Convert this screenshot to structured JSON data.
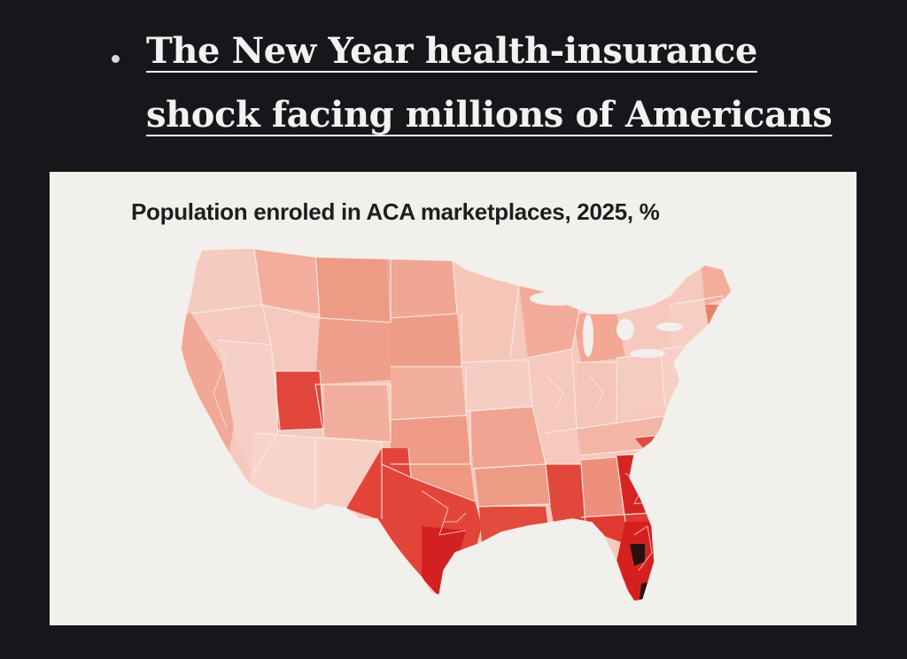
{
  "headline": {
    "line1": "The New Year health-insurance",
    "line2": "shock facing millions of Americans"
  },
  "map": {
    "title": "Population enroled in ACA marketplaces, 2025, %",
    "region": "contiguous-united-states",
    "unit": "congressional-district",
    "colors": {
      "lowest": "#f5c9bd",
      "low": "#f2ad9c",
      "mid": "#ec8b76",
      "high": "#e0463a",
      "very_high": "#cc1e1e",
      "highest": "#2a1010",
      "border": "#f6ece8",
      "background": "#f1f0ec"
    },
    "highlights": [
      {
        "area": "Florida",
        "level": "highest"
      },
      {
        "area": "Texas",
        "level": "very_high"
      },
      {
        "area": "Georgia",
        "level": "very_high"
      },
      {
        "area": "Utah",
        "level": "high"
      },
      {
        "area": "South Carolina",
        "level": "high"
      },
      {
        "area": "Mississippi",
        "level": "high"
      },
      {
        "area": "Louisiana",
        "level": "high"
      }
    ]
  }
}
